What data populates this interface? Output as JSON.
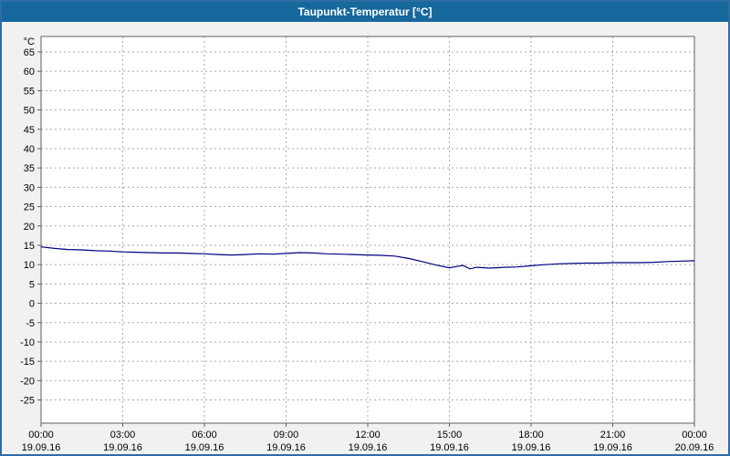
{
  "window": {
    "title": "Taupunkt-Temperatur [°C]"
  },
  "chart_data": {
    "type": "line",
    "title": "Taupunkt-Temperatur [°C]",
    "y_unit": "°C",
    "ylim": [
      -31,
      69
    ],
    "yticks": [
      65,
      60,
      55,
      50,
      45,
      40,
      35,
      30,
      25,
      20,
      15,
      10,
      5,
      0,
      -5,
      -10,
      -15,
      -20,
      -25
    ],
    "xlim_hours": [
      0,
      24
    ],
    "xticks": [
      {
        "hour": 0,
        "time": "00:00",
        "date": "19.09.16"
      },
      {
        "hour": 3,
        "time": "03:00",
        "date": "19.09.16"
      },
      {
        "hour": 6,
        "time": "06:00",
        "date": "19.09.16"
      },
      {
        "hour": 9,
        "time": "09:00",
        "date": "19.09.16"
      },
      {
        "hour": 12,
        "time": "12:00",
        "date": "19.09.16"
      },
      {
        "hour": 15,
        "time": "15:00",
        "date": "19.09.16"
      },
      {
        "hour": 18,
        "time": "18:00",
        "date": "19.09.16"
      },
      {
        "hour": 21,
        "time": "21:00",
        "date": "19.09.16"
      },
      {
        "hour": 24,
        "time": "00:00",
        "date": "20.09.16"
      }
    ],
    "grid": true,
    "legend": "none",
    "colors": {
      "line": "#000080",
      "grid": "#aaaaaa",
      "axis": "#606060",
      "title_bg": "#17689c",
      "title_text": "#ffffff",
      "window_bg": "#f1f1f1",
      "plot_bg": "#ffffff"
    },
    "series": [
      {
        "name": "Taupunkt-Temperatur",
        "color": "#000080",
        "points": [
          [
            0,
            14.6
          ],
          [
            0.5,
            14.2
          ],
          [
            1,
            13.9
          ],
          [
            1.5,
            13.8
          ],
          [
            2,
            13.6
          ],
          [
            2.5,
            13.5
          ],
          [
            3,
            13.3
          ],
          [
            3.5,
            13.2
          ],
          [
            4,
            13.1
          ],
          [
            4.5,
            13.0
          ],
          [
            5,
            13.0
          ],
          [
            5.5,
            12.9
          ],
          [
            6,
            12.8
          ],
          [
            6.5,
            12.6
          ],
          [
            7,
            12.5
          ],
          [
            7.5,
            12.6
          ],
          [
            8,
            12.8
          ],
          [
            8.5,
            12.7
          ],
          [
            9,
            12.9
          ],
          [
            9.5,
            13.1
          ],
          [
            10,
            13.0
          ],
          [
            10.5,
            12.8
          ],
          [
            11,
            12.7
          ],
          [
            11.5,
            12.6
          ],
          [
            12,
            12.5
          ],
          [
            12.5,
            12.4
          ],
          [
            13,
            12.2
          ],
          [
            13.5,
            11.6
          ],
          [
            14,
            10.8
          ],
          [
            14.5,
            9.9
          ],
          [
            15,
            9.2
          ],
          [
            15.25,
            9.5
          ],
          [
            15.5,
            9.8
          ],
          [
            15.75,
            8.9
          ],
          [
            16,
            9.3
          ],
          [
            16.5,
            9.1
          ],
          [
            17,
            9.3
          ],
          [
            17.5,
            9.4
          ],
          [
            18,
            9.7
          ],
          [
            18.5,
            10.0
          ],
          [
            19,
            10.2
          ],
          [
            19.5,
            10.3
          ],
          [
            20,
            10.4
          ],
          [
            20.5,
            10.4
          ],
          [
            21,
            10.5
          ],
          [
            21.5,
            10.5
          ],
          [
            22,
            10.5
          ],
          [
            22.5,
            10.6
          ],
          [
            23,
            10.8
          ],
          [
            23.5,
            10.9
          ],
          [
            24,
            11.0
          ]
        ]
      }
    ]
  }
}
